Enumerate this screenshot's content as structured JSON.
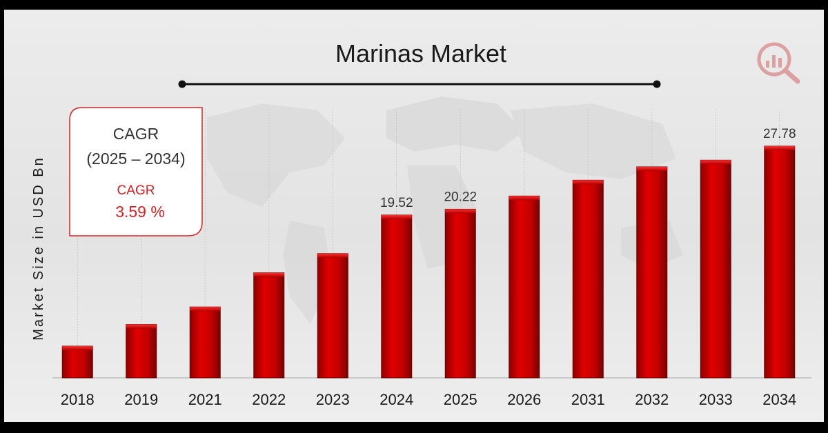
{
  "chart_data": {
    "type": "bar",
    "title": "Marinas Market",
    "ylabel": "Market Size in USD Bn",
    "xlabel": "",
    "categories": [
      "2018",
      "2019",
      "2021",
      "2022",
      "2023",
      "2024",
      "2025",
      "2026",
      "2031",
      "2032",
      "2033",
      "2034"
    ],
    "values": [
      3.8,
      6.4,
      8.5,
      12.6,
      14.9,
      19.52,
      20.22,
      21.8,
      23.7,
      25.3,
      26.1,
      27.78
    ],
    "data_labels": [
      {
        "category": "2024",
        "text": "19.52"
      },
      {
        "category": "2025",
        "text": "20.22"
      },
      {
        "category": "2034",
        "text": "27.78"
      }
    ],
    "ylim": [
      0,
      30
    ],
    "grid": "vertical",
    "bar_color": "#cc0000"
  },
  "cagr_box": {
    "heading": "CAGR",
    "period": "(2025 – 2034)",
    "label": "CAGR",
    "value": "3.59 %"
  },
  "logo_icon": "magnifier-chart-logo-icon"
}
